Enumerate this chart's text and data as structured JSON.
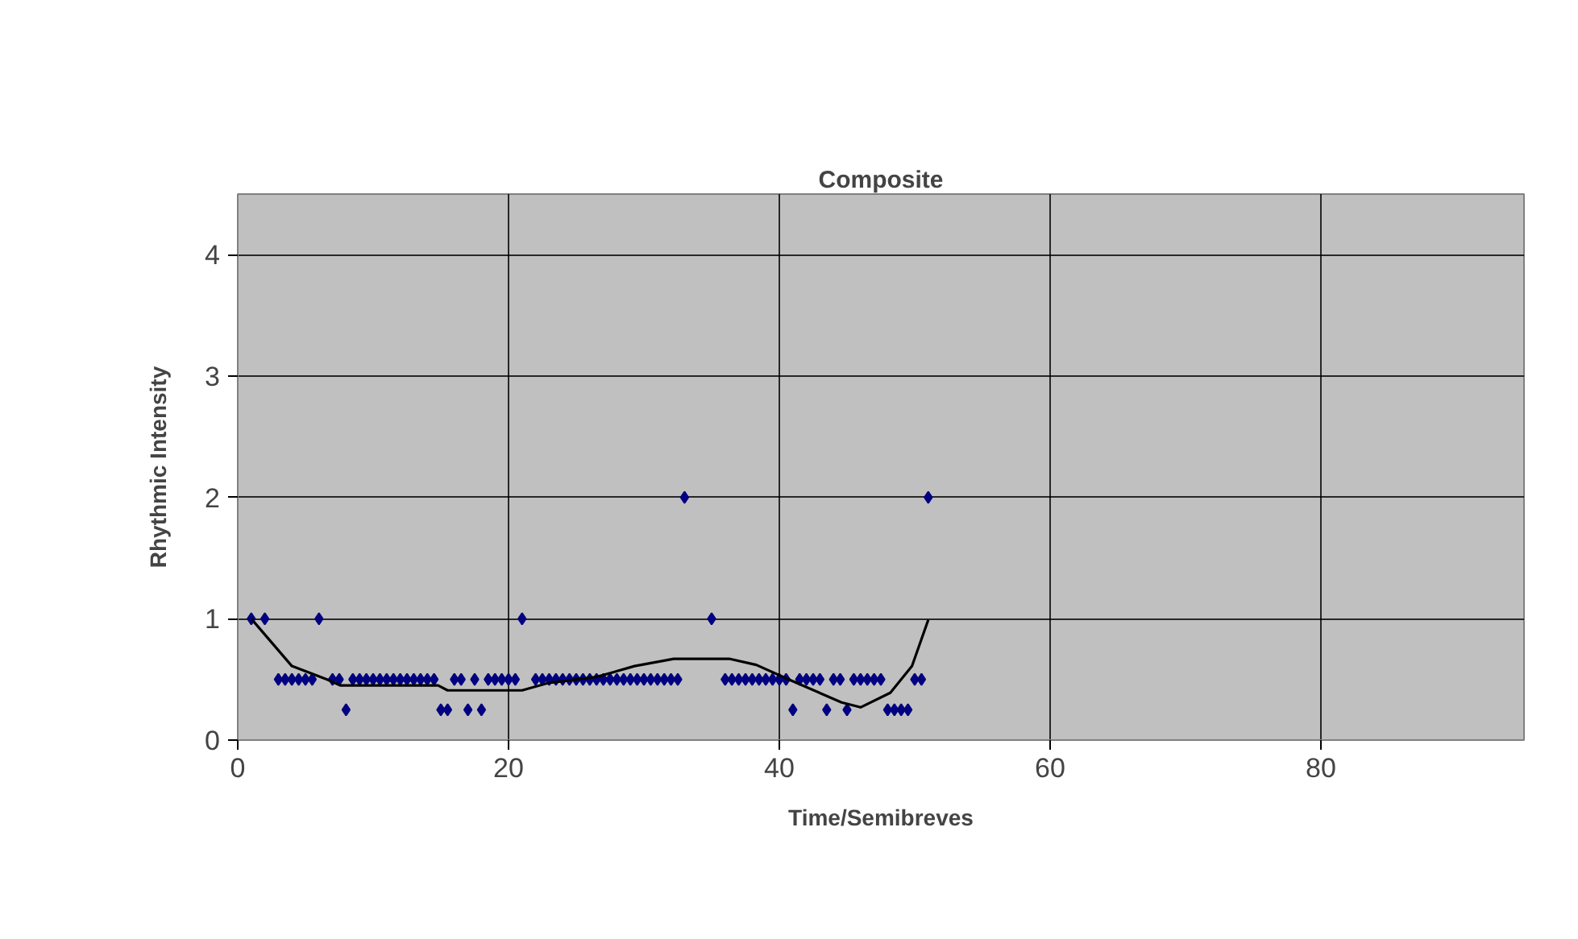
{
  "chart_data": {
    "type": "scatter",
    "title": "Composite",
    "xlabel": "Time/Semibreves",
    "ylabel": "Rhythmic Intensity",
    "xlim": [
      0,
      95
    ],
    "xticks": [
      0,
      20,
      40,
      60,
      80
    ],
    "ylim": [
      0,
      4.5
    ],
    "yticks": [
      0,
      1,
      2,
      3,
      4
    ],
    "grid": true,
    "series": [
      {
        "marker": "diamond",
        "color": "#000080",
        "x": [
          1,
          2,
          3,
          3.5,
          4,
          4.5,
          5,
          5.5,
          6,
          7,
          7.5,
          8,
          8.5,
          9,
          9.5,
          10,
          10.5,
          11,
          11.5,
          12,
          12.5,
          13,
          13.5,
          14,
          14.5,
          15,
          15.5,
          16,
          16.5,
          17,
          17.5,
          18,
          18.5,
          19,
          19.5,
          20,
          20.5,
          21,
          22,
          22.5,
          23,
          23.5,
          24,
          24.5,
          25,
          25.5,
          26,
          26.5,
          27,
          27.5,
          28,
          28.5,
          29,
          29.5,
          30,
          30.5,
          31,
          31.5,
          32,
          32.5,
          33,
          35,
          36,
          36.5,
          37,
          37.5,
          38,
          38.5,
          39,
          39.5,
          40,
          40.5,
          41,
          41.5,
          42,
          42.5,
          43,
          43.5,
          44,
          44.5,
          45,
          45.5,
          46,
          46.5,
          47,
          47.5,
          48,
          48.5,
          49,
          49.5,
          50,
          50.5,
          51
        ],
        "values": [
          1,
          1,
          0.5,
          0.5,
          0.5,
          0.5,
          0.5,
          0.5,
          1,
          0.5,
          0.5,
          0.25,
          0.5,
          0.5,
          0.5,
          0.5,
          0.5,
          0.5,
          0.5,
          0.5,
          0.5,
          0.5,
          0.5,
          0.5,
          0.5,
          0.25,
          0.25,
          0.5,
          0.5,
          0.25,
          0.5,
          0.25,
          0.5,
          0.5,
          0.5,
          0.5,
          0.5,
          1,
          0.5,
          0.5,
          0.5,
          0.5,
          0.5,
          0.5,
          0.5,
          0.5,
          0.5,
          0.5,
          0.5,
          0.5,
          0.5,
          0.5,
          0.5,
          0.5,
          0.5,
          0.5,
          0.5,
          0.5,
          0.5,
          0.5,
          2,
          1,
          0.5,
          0.5,
          0.5,
          0.5,
          0.5,
          0.5,
          0.5,
          0.5,
          0.5,
          0.5,
          0.25,
          0.5,
          0.5,
          0.5,
          0.5,
          0.25,
          0.5,
          0.5,
          0.25,
          0.5,
          0.5,
          0.5,
          0.5,
          0.5,
          0.25,
          0.25,
          0.25,
          0.25,
          0.5,
          0.5,
          2
        ]
      },
      {
        "type": "line",
        "color": "#000000",
        "line_style": "solid",
        "x": [
          1,
          4,
          6.6,
          7.6,
          14.8,
          15.5,
          21,
          22.9,
          26.5,
          29.3,
          32.2,
          36.3,
          38.3,
          40.7,
          44.6,
          46,
          48.2,
          49.8,
          51
        ],
        "values": [
          1,
          0.61,
          0.5,
          0.45,
          0.45,
          0.41,
          0.41,
          0.47,
          0.52,
          0.61,
          0.67,
          0.67,
          0.62,
          0.5,
          0.31,
          0.27,
          0.39,
          0.61,
          0.99
        ]
      }
    ]
  }
}
